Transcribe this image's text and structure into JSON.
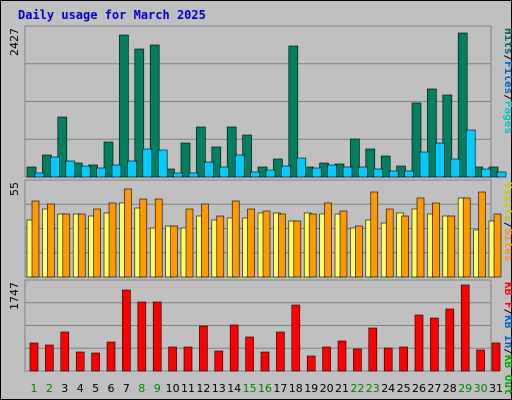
{
  "chart_data": {
    "title": "Daily usage for March 2025",
    "type": "bar",
    "categories": [
      "1",
      "2",
      "3",
      "4",
      "5",
      "6",
      "7",
      "8",
      "9",
      "10",
      "11",
      "12",
      "13",
      "14",
      "15",
      "16",
      "17",
      "18",
      "19",
      "20",
      "21",
      "22",
      "23",
      "24",
      "25",
      "26",
      "27",
      "28",
      "29",
      "30",
      "31"
    ],
    "weekend_day_color": "#008000",
    "weekday_day_color": "#000000",
    "weekend_days": [
      1,
      2,
      8,
      9,
      15,
      16,
      22,
      23,
      29,
      30
    ],
    "panels": [
      {
        "id": "top",
        "ymax_label": "2427",
        "ymax": 2427,
        "legend": [
          {
            "label": "Hits",
            "color": "#006666"
          },
          {
            "label": "/",
            "color": "#000000"
          },
          {
            "label": "Files",
            "color": "#0066cc"
          },
          {
            "label": "/",
            "color": "#000000"
          },
          {
            "label": "Pages",
            "color": "#00cccc"
          }
        ],
        "series": [
          {
            "name": "Hits",
            "color": "#008060",
            "values": [
              160,
              360,
              990,
              230,
              190,
              570,
              2350,
              2110,
              2180,
              140,
              560,
              830,
              490,
              830,
              690,
              170,
              290,
              2170,
              170,
              230,
              220,
              630,
              460,
              350,
              180,
              1230,
              1460,
              1350,
              2380,
              160,
              160
            ]
          },
          {
            "name": "Files",
            "color": "#00ccff",
            "values": [
              70,
              330,
              260,
              180,
              150,
              190,
              270,
              470,
              440,
              60,
              60,
              240,
              170,
              360,
              80,
              120,
              180,
              320,
              150,
              200,
              160,
              160,
              140,
              100,
              100,
              410,
              560,
              300,
              770,
              130,
              90
            ]
          },
          {
            "name": "Pages",
            "color": "#00ccff",
            "values": [
              0,
              0,
              0,
              0,
              0,
              0,
              0,
              0,
              0,
              0,
              0,
              0,
              0,
              0,
              0,
              0,
              0,
              0,
              0,
              0,
              0,
              0,
              0,
              0,
              0,
              0,
              0,
              0,
              0,
              0,
              0
            ]
          }
        ]
      },
      {
        "id": "middle",
        "ymax_label": "55",
        "ymax": 55,
        "legend": [
          {
            "label": "Visits",
            "color": "#cccc00"
          },
          {
            "label": "/",
            "color": "#000000"
          },
          {
            "label": "Sites",
            "color": "#ff9900"
          }
        ],
        "series": [
          {
            "name": "Visits",
            "color": "#ffff66",
            "values": [
              34,
              40,
              37,
              37,
              36,
              38,
              44,
              41,
              29,
              30,
              29,
              36,
              34,
              35,
              35,
              38,
              38,
              33,
              38,
              37,
              37,
              29,
              34,
              32,
              38,
              40,
              37,
              36,
              47,
              28,
              33
            ]
          },
          {
            "name": "Sites",
            "color": "#ff9900",
            "values": [
              45,
              43,
              37,
              37,
              40,
              44,
              52,
              46,
              46,
              30,
              40,
              43,
              36,
              45,
              40,
              39,
              37,
              33,
              37,
              44,
              39,
              30,
              50,
              40,
              36,
              47,
              44,
              36,
              47,
              50,
              37
            ]
          }
        ]
      },
      {
        "id": "bottom",
        "ymax_label": "1747",
        "ymax": 1747,
        "legend": [
          {
            "label": "KB F",
            "color": "#ff0000"
          },
          {
            "label": "/",
            "color": "#000000"
          },
          {
            "label": "KB In",
            "color": "#0066cc"
          },
          {
            "label": "/",
            "color": "#000000"
          },
          {
            "label": "KB Out",
            "color": "#00aa00"
          }
        ],
        "series": [
          {
            "name": "KB F",
            "color": "#ff0000",
            "values": [
              570,
              530,
              790,
              380,
              360,
              580,
              1620,
              1390,
              1380,
              490,
              490,
              900,
              410,
              930,
              680,
              380,
              790,
              1320,
              310,
              490,
              600,
              450,
              860,
              460,
              480,
              1130,
              1060,
              1250,
              1720,
              430,
              560
            ]
          }
        ]
      }
    ]
  }
}
